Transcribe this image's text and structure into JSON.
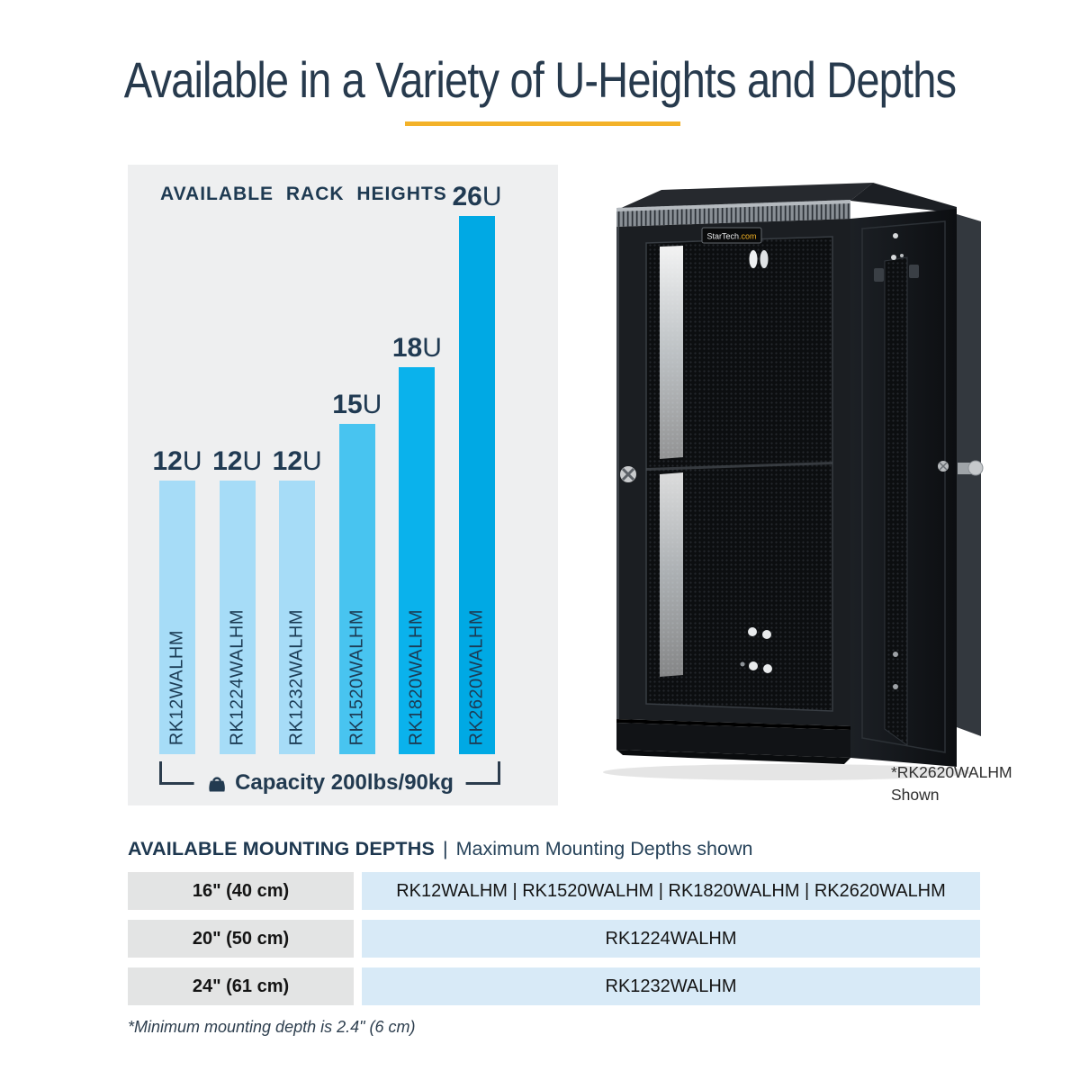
{
  "page": {
    "title": "Available in a Variety of U-Heights and Depths",
    "accent_color": "#F3B229",
    "footnote": "*Minimum mounting depth is 2.4\" (6 cm)"
  },
  "chart_data": {
    "type": "bar",
    "title": "AVAILABLE RACK HEIGHTS",
    "categories": [
      "RK12WALHM",
      "RK1224WALHM",
      "RK1232WALHM",
      "RK1520WALHM",
      "RK1820WALHM",
      "RK2620WALHM"
    ],
    "values": [
      12,
      12,
      12,
      15,
      18,
      26
    ],
    "unit": "U",
    "bar_colors": [
      "#A6DCF7",
      "#A6DCF7",
      "#A6DCF7",
      "#48C4F0",
      "#0AB2EC",
      "#00A9E4"
    ],
    "annotation": "Capacity 200lbs/90kg",
    "panel_bg": "#EEEFF0",
    "grid": false,
    "legend_position": "none",
    "xlabel": "",
    "ylabel": ""
  },
  "product": {
    "logo_main": "StarTech",
    "logo_suffix": ".com",
    "caption_line1": "*RK2620WALHM",
    "caption_line2": "Shown"
  },
  "mounting": {
    "heading_bold": "AVAILABLE MOUNTING DEPTHS",
    "heading_sep": "|",
    "heading_regular": "Maximum Mounting Depths shown",
    "rows": [
      {
        "depth": "16\" (40 cm)",
        "models": "RK12WALHM | RK1520WALHM | RK1820WALHM | RK2620WALHM"
      },
      {
        "depth": "20\" (50 cm)",
        "models": "RK1224WALHM"
      },
      {
        "depth": "24\" (61 cm)",
        "models": "RK1232WALHM"
      }
    ]
  }
}
